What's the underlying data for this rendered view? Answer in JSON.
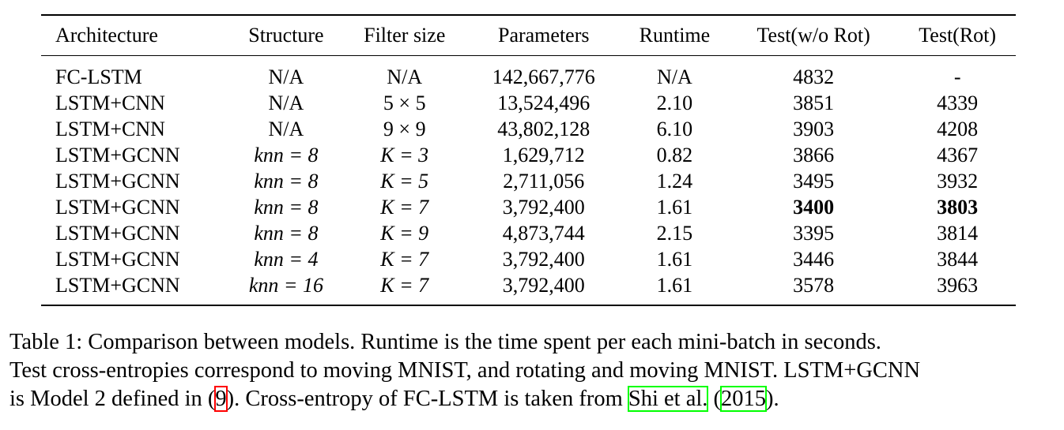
{
  "table": {
    "headers": [
      "Architecture",
      "Structure",
      "Filter size",
      "Parameters",
      "Runtime",
      "Test(w/o Rot)",
      "Test(Rot)"
    ],
    "rows": [
      [
        "FC-LSTM",
        "N/A",
        "N/A",
        "142,667,776",
        "N/A",
        "4832",
        "-"
      ],
      [
        "LSTM+CNN",
        "N/A",
        "5 × 5",
        "13,524,496",
        "2.10",
        "3851",
        "4339"
      ],
      [
        "LSTM+CNN",
        "N/A",
        "9 × 9",
        "43,802,128",
        "6.10",
        "3903",
        "4208"
      ],
      [
        "LSTM+GCNN",
        "knn = 8",
        "K = 3",
        "1,629,712",
        "0.82",
        "3866",
        "4367"
      ],
      [
        "LSTM+GCNN",
        "knn = 8",
        "K = 5",
        "2,711,056",
        "1.24",
        "3495",
        "3932"
      ],
      [
        "LSTM+GCNN",
        "knn = 8",
        "K = 7",
        "3,792,400",
        "1.61",
        "3400",
        "3803"
      ],
      [
        "LSTM+GCNN",
        "knn = 8",
        "K = 9",
        "4,873,744",
        "2.15",
        "3395",
        "3814"
      ],
      [
        "LSTM+GCNN",
        "knn = 4",
        "K = 7",
        "3,792,400",
        "1.61",
        "3446",
        "3844"
      ],
      [
        "LSTM+GCNN",
        "knn = 16",
        "K = 7",
        "3,792,400",
        "1.61",
        "3578",
        "3963"
      ]
    ]
  },
  "caption": {
    "line1": "Table 1: Comparison between models. Runtime is the time spent per each mini-batch in seconds.",
    "line2": "Test cross-entropies correspond to moving MNIST, and rotating and moving MNIST. LSTM+GCNN",
    "line3_a": "is Model 2 defined in (",
    "ref_num": "9",
    "line3_b": "). Cross-entropy of FC-LSTM is taken from ",
    "ref_author": "Shi et al.",
    "line3_c": " (",
    "ref_year": "2015",
    "line3_d": ")."
  }
}
